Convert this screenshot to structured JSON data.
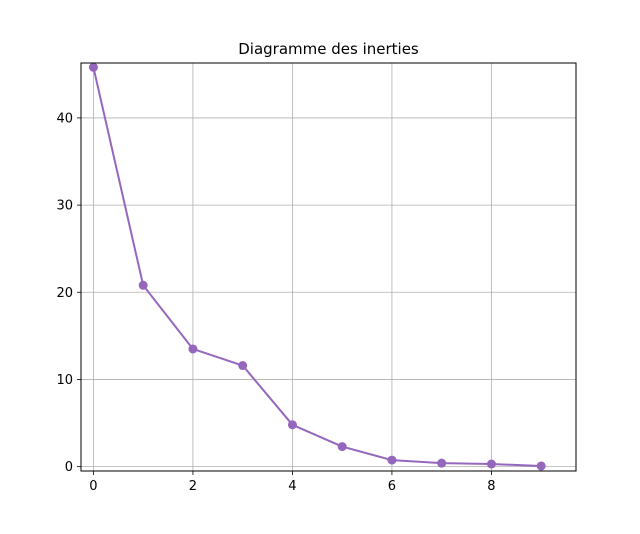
{
  "chart_data": {
    "type": "line",
    "title": "Diagramme des inerties",
    "xlabel": "",
    "ylabel": "",
    "x": [
      0,
      1,
      2,
      3,
      4,
      5,
      6,
      7,
      8,
      9
    ],
    "series": [
      {
        "values": [
          45.8,
          20.8,
          13.5,
          11.6,
          4.8,
          2.3,
          0.75,
          0.4,
          0.3,
          0.08
        ]
      }
    ],
    "xlim": [
      -0.25,
      9.7
    ],
    "ylim": [
      -0.5,
      46.3
    ],
    "xticks": [
      0,
      2,
      4,
      6,
      8
    ],
    "yticks": [
      0,
      10,
      20,
      30,
      40
    ],
    "grid": true,
    "series_color": "#9467bd",
    "marker": "circle"
  }
}
